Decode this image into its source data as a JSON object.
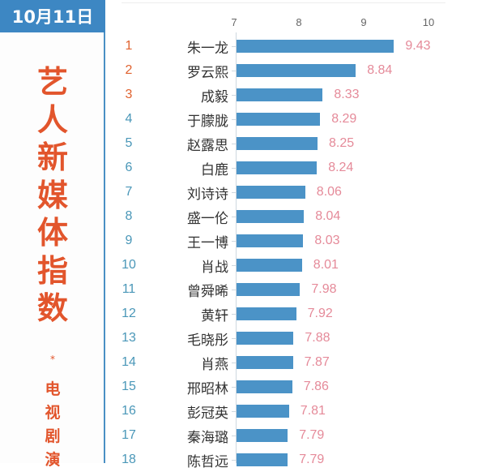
{
  "header": {
    "date": "10月11日"
  },
  "sidebar": {
    "title_chars": [
      "艺",
      "人",
      "新",
      "媒",
      "体",
      "指",
      "数"
    ],
    "star": "*",
    "subtitle_chars": [
      "电",
      "视",
      "剧",
      "演"
    ]
  },
  "colors": {
    "header_bg": "#3d87c3",
    "title_red": "#e2552c",
    "bar_blue": "#4b93c7",
    "value_pink": "#e58a99",
    "rank_top3": "#e0622f",
    "rank_other": "#4a97b8"
  },
  "chart_data": {
    "type": "bar",
    "orientation": "horizontal",
    "title": "艺人新媒体指数 · 电视剧演员",
    "subtitle": "10月11日",
    "xlabel": "",
    "ylabel": "",
    "xlim": [
      7,
      10
    ],
    "x_ticks": [
      "7",
      "8",
      "9",
      "10"
    ],
    "grid": false,
    "categories": [
      "朱一龙",
      "罗云熙",
      "成毅",
      "于朦胧",
      "赵露思",
      "白鹿",
      "刘诗诗",
      "盛一伦",
      "王一博",
      "肖战",
      "曾舜晞",
      "黄轩",
      "毛晓彤",
      "肖燕",
      "邢昭林",
      "彭冠英",
      "秦海璐",
      "陈哲远"
    ],
    "ranks": [
      "1",
      "2",
      "3",
      "4",
      "5",
      "6",
      "7",
      "8",
      "9",
      "10",
      "11",
      "12",
      "13",
      "14",
      "15",
      "16",
      "17",
      "18"
    ],
    "values": [
      9.43,
      8.84,
      8.33,
      8.29,
      8.25,
      8.24,
      8.06,
      8.04,
      8.03,
      8.01,
      7.98,
      7.92,
      7.88,
      7.87,
      7.86,
      7.81,
      7.79,
      7.79
    ],
    "value_labels": [
      "9.43",
      "8.84",
      "8.33",
      "8.29",
      "8.25",
      "8.24",
      "8.06",
      "8.04",
      "8.03",
      "8.01",
      "7.98",
      "7.92",
      "7.88",
      "7.87",
      "7.86",
      "7.81",
      "7.79",
      "7.79"
    ]
  }
}
